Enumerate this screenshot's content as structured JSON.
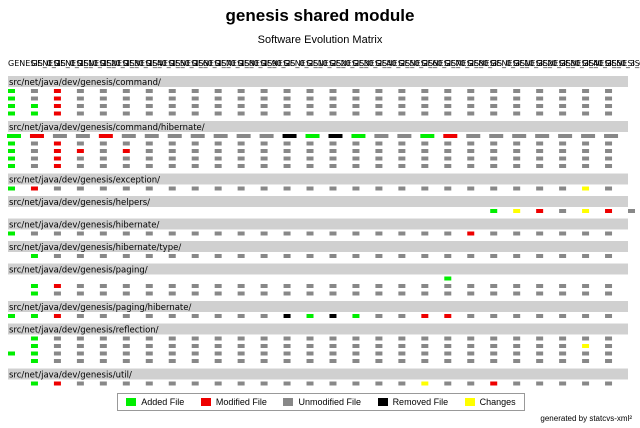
{
  "chart_data": {
    "type": "heatmap",
    "title": "genesis shared module",
    "subtitle": "Software Evolution Matrix",
    "versions": [
      "GENESIS_0_1",
      "GENESIS_0_1_1",
      "GENESIS_0_1_2",
      "GENESIS_0_1_3",
      "GENESIS_0_1_4",
      "GENESIS_0_1_5",
      "GENESIS_0_1_6",
      "GENESIS_0_1_7",
      "GENESIS_0_1_8",
      "GENESIS_0_1_9",
      "GENESIS_0_2",
      "GENESIS_0_2_1",
      "GENESIS_0_2_2",
      "GENESIS_0_2_3",
      "GENESIS_0_2_4",
      "GENESIS_0_2_5",
      "GENESIS_0_2_6",
      "GENESIS_0_2_7",
      "GENESIS_0_2_8",
      "GENESIS_0_3",
      "GENESIS_0_3_1",
      "GENESIS_0_3_2",
      "GENESIS_0_3_3",
      "GENESIS_0_3_4",
      "GENESIS_0_3_5",
      "GENESIS_0_3_6",
      "GENESIS_1_0"
    ],
    "legend_codes": {
      "A": "Added File",
      "M": "Modified File",
      "U": "Unmodified File",
      "R": "Removed File",
      "C": "Changes"
    },
    "directories": [
      {
        "name": "src/net/java/dev/genesis/command/",
        "rows": [
          "AUMUUUUUUUUUUUUUUUUUUUUUUUU",
          "AUMUUUUUUUUUUUUUUUUUUUUUUUU",
          "AAMUUUUUUUUUUUUUUUUUUUUUUUU",
          "AAMUUUUUUUUUUUUUUUUUUUUUUUU"
        ]
      },
      {
        "name": "src/net/java/dev/genesis/command/hibernate/",
        "rows": [
          "AMUUMUUUUUUURARAUUAMUUUUUUU",
          "AUMUUUUUUUUUUUUUUUUUUUUUUUU",
          "AUMMUMUUUUUUUUUUUUUUUUUUUUU",
          "AUMUUUUUUUUUUUUUUUUUUUUUUUU",
          "AUMUUUUUUUUUUUUUUUUUUUUUUUU"
        ]
      },
      {
        "name": "src/net/java/dev/genesis/exception/",
        "rows": [
          "AMUUUUUUUUUUUUUUUUUUUUUUUCU"
        ]
      },
      {
        "name": "src/net/java/dev/genesis/helpers/",
        "rows": [
          "---------------------ACMUCMU"
        ]
      },
      {
        "name": "src/net/java/dev/genesis/hibernate/",
        "rows": [
          "AUUUUUUUUUUUUUUUUUUUMUUUUUU"
        ]
      },
      {
        "name": "src/net/java/dev/genesis/hibernate/type/",
        "rows": [
          "-AUUUUUUUUUUUUUUUUUUUUUUUUU"
        ]
      },
      {
        "name": "src/net/java/dev/genesis/paging/",
        "rows": [
          "-------------------A-------",
          "-AMUUUUUUUUUUUUUUUUUUUUUUUU",
          "-AUUUUUUUUUUUUUUUUUUUUUUUUU"
        ]
      },
      {
        "name": "src/net/java/dev/genesis/paging/hibernate/",
        "rows": [
          "AAMUUUUUUUUURARAUUMMUUUUUUU"
        ]
      },
      {
        "name": "src/net/java/dev/genesis/reflection/",
        "rows": [
          "-AUUUUUUUUUUUUUUUUUUUUUUUUU",
          "-AUUUUUUUUUUUUUUUUUUUUUUUCU",
          "AAUUUUUUUUUUUUUUUUUUUUUUUUU",
          "-AUUUUUUUUUUUUUUUUUUUUUUUUU"
        ]
      },
      {
        "name": "src/net/java/dev/genesis/util/",
        "rows": [
          "-AMUUUUUUUUUUUUUUUCUUMUUUUU"
        ]
      }
    ],
    "legend": [
      {
        "label": "Added File",
        "color": "#00ee00"
      },
      {
        "label": "Modified File",
        "color": "#ee0000"
      },
      {
        "label": "Unmodified File",
        "color": "#888888"
      },
      {
        "label": "Removed File",
        "color": "#000000"
      },
      {
        "label": "Changes",
        "color": "#ffff00"
      }
    ],
    "colors": {
      "A": "#00ee00",
      "M": "#ee0000",
      "U": "#888888",
      "R": "#000000",
      "C": "#ffff00"
    },
    "header_color": "#d0d0d0"
  },
  "footer": {
    "credit": "generated by statcvs-xml²"
  }
}
